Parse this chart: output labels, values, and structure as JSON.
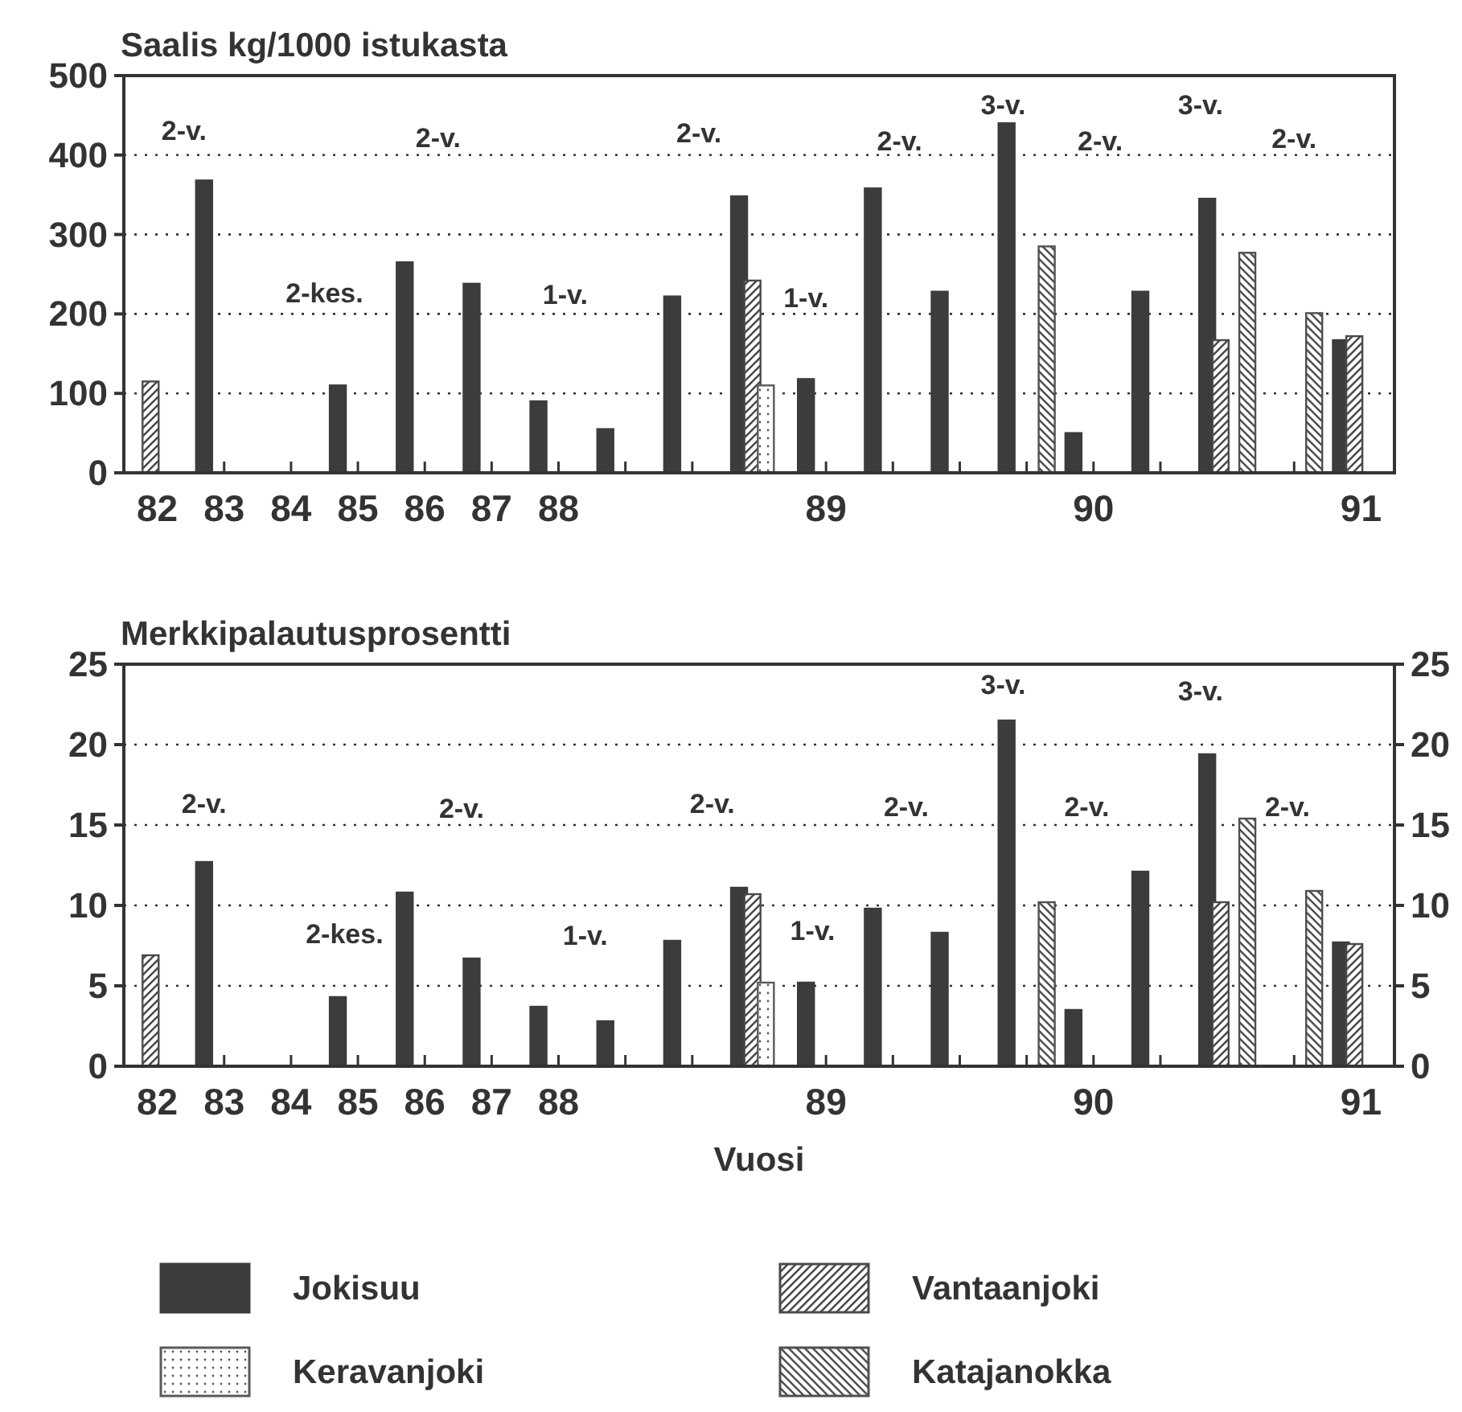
{
  "chart_data": [
    {
      "type": "bar",
      "title": "Saalis kg/1000 istukasta",
      "categories": [
        "82",
        "83",
        "84",
        "85",
        "86",
        "87",
        "88",
        null,
        null,
        null,
        "89",
        null,
        null,
        null,
        "90",
        null,
        null,
        null,
        "91"
      ],
      "ylim": [
        0,
        500
      ],
      "yticks": [
        0,
        100,
        200,
        300,
        400,
        500
      ],
      "grid": "y",
      "legend": false,
      "series": [
        {
          "color": "#3c3c3c",
          "values": [
            null,
            368,
            null,
            110,
            265,
            238,
            90,
            55,
            222,
            348,
            118,
            358,
            228,
            440,
            50,
            228,
            345,
            null,
            167
          ]
        },
        {
          "color": "#4a4a4a",
          "values": [
            115,
            null,
            null,
            null,
            null,
            null,
            null,
            null,
            null,
            242,
            null,
            null,
            null,
            null,
            null,
            null,
            167,
            null,
            172
          ]
        },
        {
          "color": "#5a5a5a",
          "values": [
            null,
            null,
            null,
            null,
            null,
            null,
            null,
            null,
            null,
            110,
            null,
            null,
            null,
            null,
            null,
            null,
            null,
            null,
            null
          ]
        },
        {
          "color": "#505050",
          "values": [
            null,
            null,
            null,
            null,
            null,
            null,
            null,
            null,
            null,
            null,
            null,
            null,
            null,
            285,
            null,
            null,
            277,
            201,
            null
          ]
        }
      ],
      "annotations": [
        "2-v.",
        "2-kes.",
        "2-v.",
        "1-v.",
        "2-v.",
        "1-v.",
        "2-v.",
        "3-v.",
        "2-v.",
        "3-v.",
        "2-v."
      ]
    },
    {
      "type": "bar",
      "title": "Merkkipalautusprosentti",
      "xlabel": "Vuosi",
      "categories": [
        "82",
        "83",
        "84",
        "85",
        "86",
        "87",
        "88",
        null,
        null,
        null,
        "89",
        null,
        null,
        null,
        "90",
        null,
        null,
        null,
        "91"
      ],
      "ylim": [
        0,
        25
      ],
      "yticks": [
        0,
        5,
        10,
        15,
        20,
        25
      ],
      "y2lim": [
        0,
        25
      ],
      "y2ticks": [
        0,
        5,
        10,
        15,
        20,
        25
      ],
      "grid": "y",
      "legend": "bottom",
      "series": [
        {
          "name": "Jokisuu",
          "color": "#3c3c3c",
          "values": [
            null,
            12.7,
            null,
            4.3,
            10.8,
            6.7,
            3.7,
            2.8,
            7.8,
            11.1,
            5.2,
            9.8,
            8.3,
            21.5,
            3.5,
            12.1,
            19.4,
            null,
            7.7
          ]
        },
        {
          "name": "Vantaanjoki",
          "color": "#4a4a4a",
          "values": [
            6.9,
            null,
            null,
            null,
            null,
            null,
            null,
            null,
            null,
            10.7,
            null,
            null,
            null,
            null,
            null,
            null,
            10.2,
            null,
            7.6
          ]
        },
        {
          "name": "Keravanjoki",
          "color": "#5a5a5a",
          "values": [
            null,
            null,
            null,
            null,
            null,
            null,
            null,
            null,
            null,
            5.2,
            null,
            null,
            null,
            null,
            null,
            null,
            null,
            null,
            null
          ]
        },
        {
          "name": "Katajanokka",
          "color": "#505050",
          "values": [
            null,
            null,
            null,
            null,
            null,
            null,
            null,
            null,
            null,
            null,
            null,
            null,
            null,
            10.2,
            null,
            null,
            15.4,
            10.9,
            null
          ]
        }
      ],
      "annotations": [
        "2-v.",
        "2-kes.",
        "2-v.",
        "1-v.",
        "2-v.",
        "1-v.",
        "2-v.",
        "3-v.",
        "2-v.",
        "3-v.",
        "2-v."
      ]
    }
  ]
}
